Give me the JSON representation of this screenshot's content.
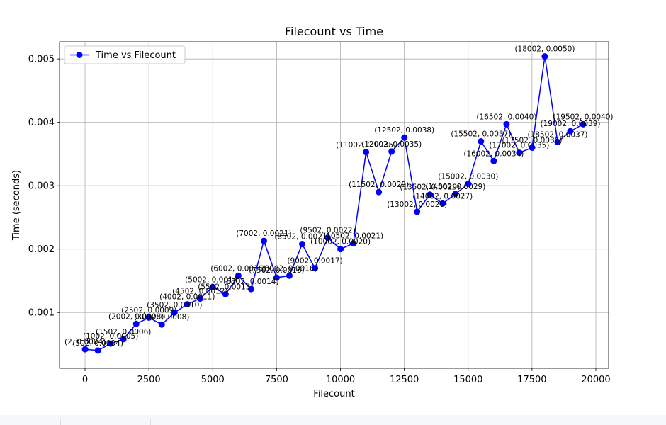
{
  "chart_data": {
    "type": "line",
    "title": "Filecount vs Time",
    "xlabel": "Filecount",
    "ylabel": "Time (seconds)",
    "xlim": [
      -1000,
      20500
    ],
    "ylim": [
      0.00012,
      0.00527
    ],
    "xticks": [
      0,
      2500,
      5000,
      7500,
      10000,
      12500,
      15000,
      17500,
      20000
    ],
    "xtick_labels": [
      "0",
      "2500",
      "5000",
      "7500",
      "10000",
      "12500",
      "15000",
      "17500",
      "20000"
    ],
    "yticks": [
      0.001,
      0.002,
      0.003,
      0.004,
      0.005
    ],
    "ytick_labels": [
      "0.001",
      "0.002",
      "0.003",
      "0.004",
      "0.005"
    ],
    "grid": true,
    "legend_position": "top-left",
    "series": [
      {
        "name": "Time vs Filecount",
        "color": "#0000ff",
        "marker": "circle",
        "x": [
          2,
          502,
          1002,
          1502,
          2002,
          2502,
          3002,
          3502,
          4002,
          4502,
          5002,
          5502,
          6002,
          6502,
          7002,
          7502,
          8002,
          8502,
          9002,
          9502,
          10002,
          10502,
          11002,
          11502,
          12002,
          12502,
          13002,
          13502,
          14002,
          14502,
          15002,
          15502,
          16002,
          16502,
          17002,
          17502,
          18002,
          18502,
          19002,
          19502
        ],
        "y": [
          0.00042,
          0.0004,
          0.00051,
          0.00058,
          0.00082,
          0.00092,
          0.00081,
          0.001,
          0.00113,
          0.00122,
          0.0014,
          0.00129,
          0.00158,
          0.00137,
          0.00213,
          0.00155,
          0.00158,
          0.00208,
          0.0017,
          0.00218,
          0.002,
          0.00209,
          0.00353,
          0.0029,
          0.00354,
          0.00376,
          0.00259,
          0.00286,
          0.00272,
          0.00287,
          0.00303,
          0.0037,
          0.00339,
          0.00397,
          0.00352,
          0.0036,
          0.00504,
          0.00369,
          0.00386,
          0.00397
        ],
        "labels": [
          "(2, 0.0004)",
          "(502, 0.0004)",
          "(1002, 0.0005)",
          "(1502, 0.0006)",
          "(2002, 0.0008)",
          "(2502, 0.0009)",
          "(3002, 0.0008)",
          "(3502, 0.0010)",
          "(4002, 0.0011)",
          "(4502, 0.0012)",
          "(5002, 0.0014)",
          "(5502, 0.0013)",
          "(6002, 0.0016)",
          "(6502, 0.0014)",
          "(7002, 0.0021)",
          "(7502, 0.0016)",
          "(8002, 0.0016)",
          "(8502, 0.0021)",
          "(9002, 0.0017)",
          "(9502, 0.0022)",
          "(10002, 0.0020)",
          "(10502, 0.0021)",
          "(11002, 0.0035)",
          "(11502, 0.0029)",
          "(12002, 0.0035)",
          "(12502, 0.0038)",
          "(13002, 0.0026)",
          "(13502, 0.0029)",
          "(14002, 0.0027)",
          "(14502, 0.0029)",
          "(15002, 0.0030)",
          "(15502, 0.0037)",
          "(16002, 0.0034)",
          "(16502, 0.0040)",
          "(17002, 0.0035)",
          "(17502, 0.0036)",
          "(18002, 0.0050)",
          "(18502, 0.0037)",
          "(19002, 0.0039)",
          "(19502, 0.0040)"
        ]
      }
    ]
  }
}
